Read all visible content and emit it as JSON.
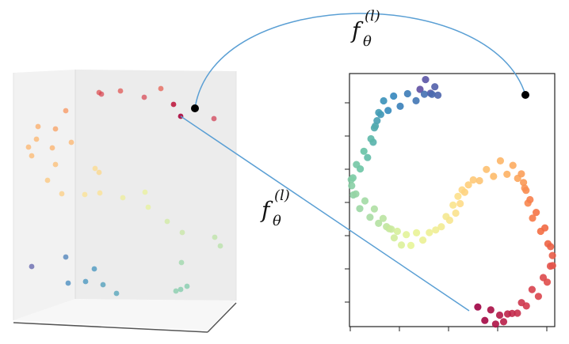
{
  "labels": [
    {
      "base": "f",
      "sub": "θ",
      "sup": "(l)"
    },
    {
      "base": "f",
      "sub": "θ",
      "sup": "(l)"
    }
  ]
}
